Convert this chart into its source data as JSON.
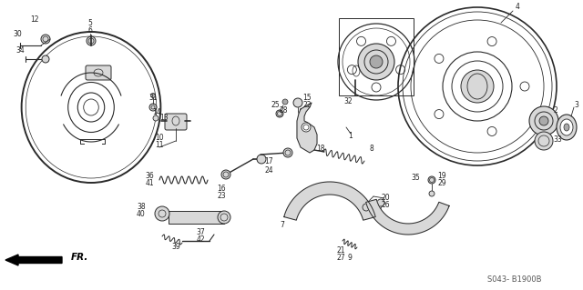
{
  "bg_color": "#ffffff",
  "fig_width": 6.4,
  "fig_height": 3.19,
  "label_color": "#222222",
  "label_fs": 5.5,
  "footer_text": "S043- B1900B",
  "line_color": "#2a2a2a",
  "fill_light": "#d8d8d8",
  "fill_dark": "#aaaaaa"
}
